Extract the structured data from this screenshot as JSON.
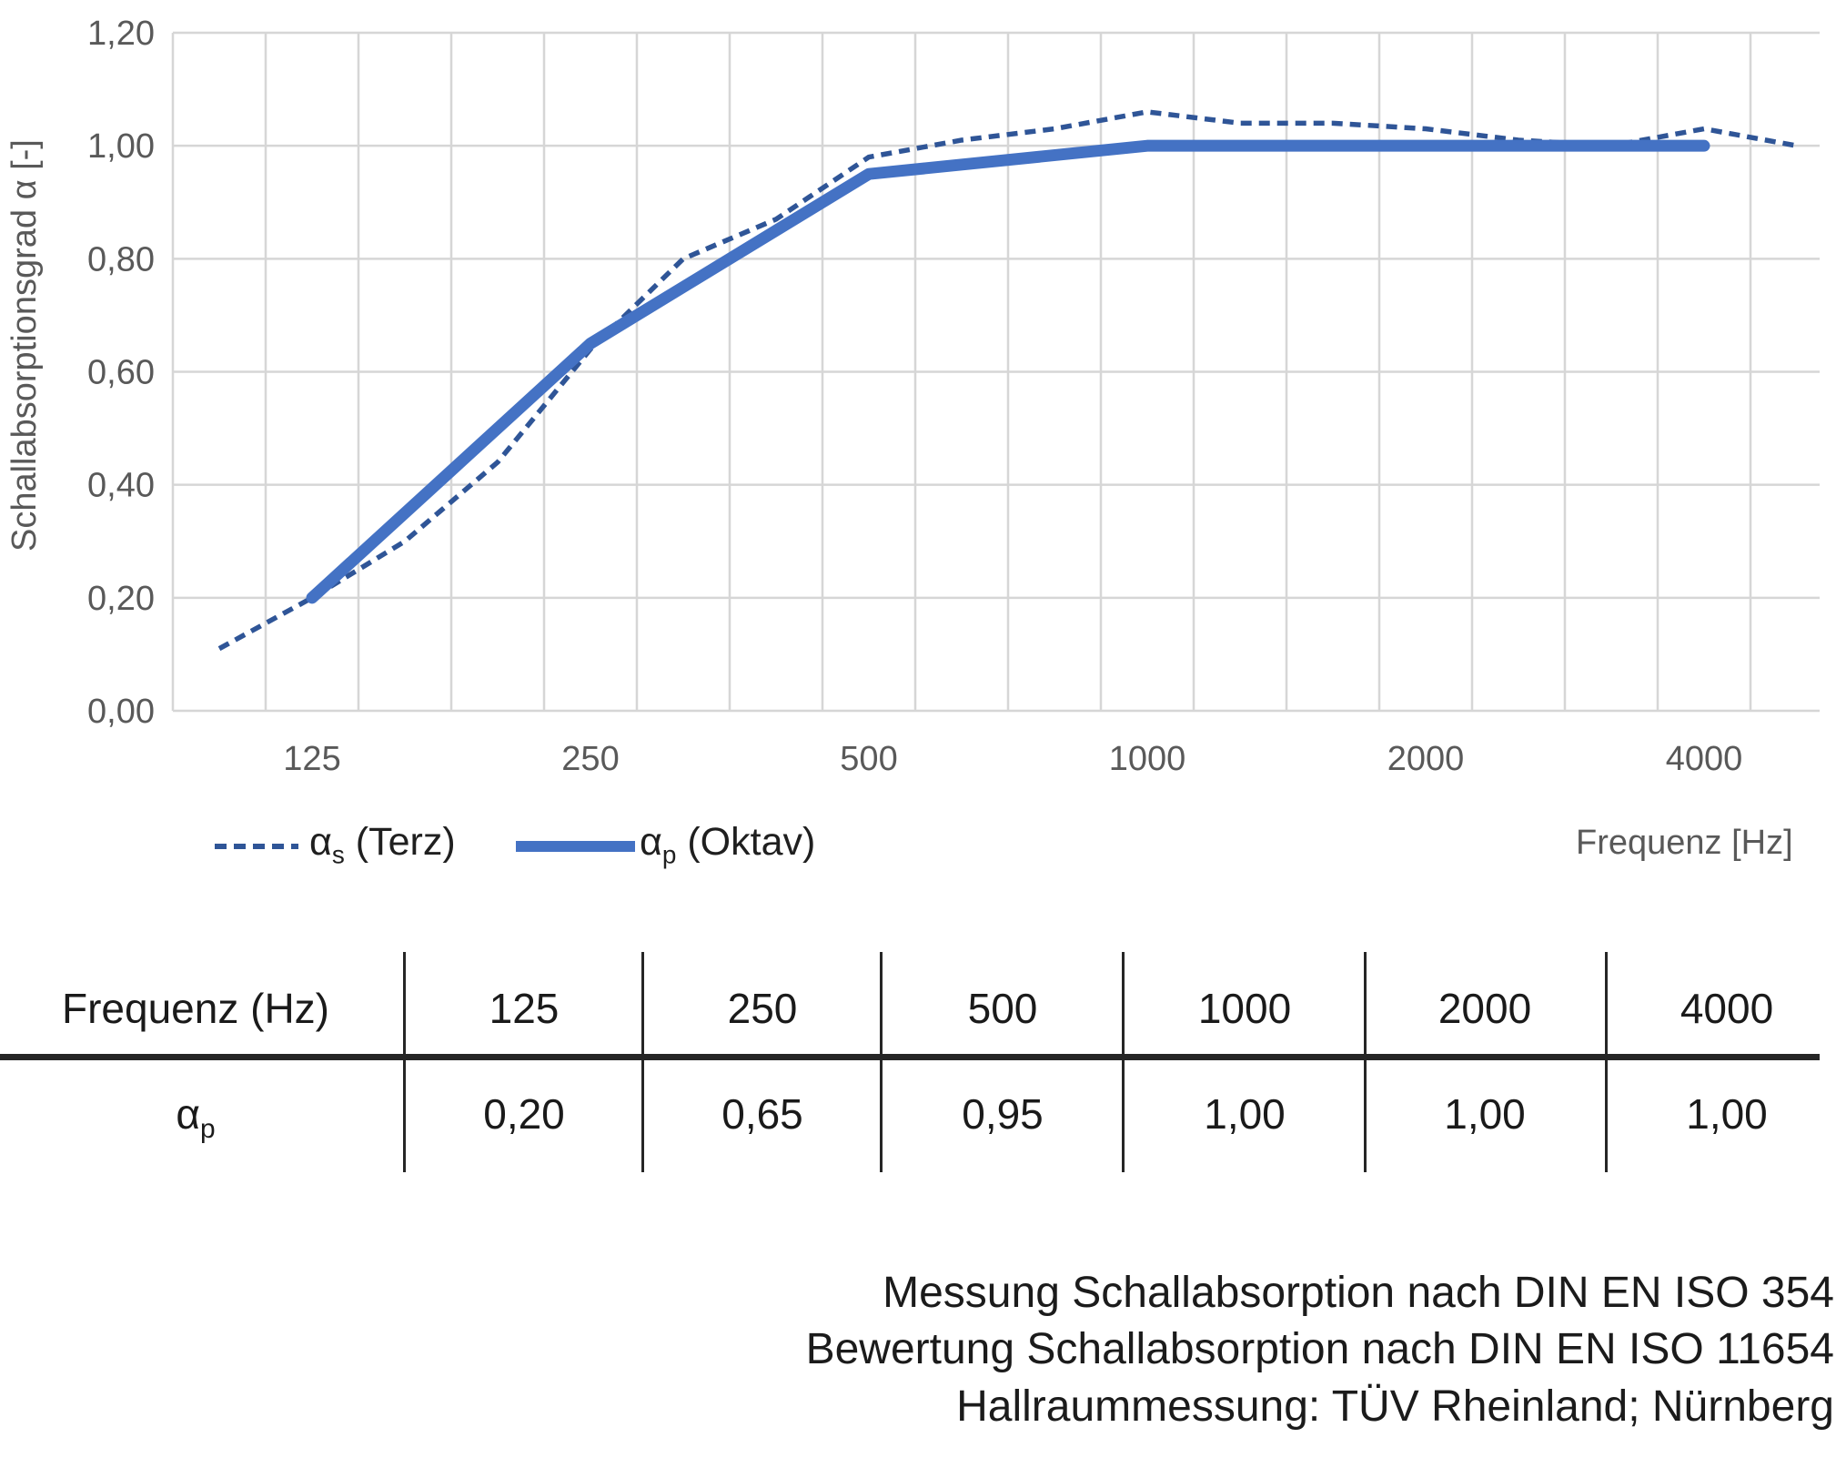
{
  "y_axis": {
    "title": "Schallabsorptionsgrad α [-]",
    "ticks": [
      "1,20",
      "1,00",
      "0,80",
      "0,60",
      "0,40",
      "0,20",
      "0,00"
    ]
  },
  "x_axis": {
    "title": "Frequenz [Hz]",
    "ticks": [
      "125",
      "250",
      "500",
      "1000",
      "2000",
      "4000"
    ]
  },
  "legend": {
    "items": [
      {
        "alpha": "α",
        "sub": "s",
        "rest": " (Terz)"
      },
      {
        "alpha": "α",
        "sub": "p",
        "rest": " (Oktav)"
      }
    ]
  },
  "chart_data": {
    "type": "line",
    "title": "",
    "xlabel": "Frequenz [Hz]",
    "ylabel": "Schallabsorptionsgrad α [-]",
    "ylim": [
      0,
      1.2
    ],
    "ytick_step": 0.2,
    "grid": true,
    "x_scale": "third-octave categorical",
    "x_categories_third_octave": [
      100,
      125,
      160,
      200,
      250,
      315,
      400,
      500,
      630,
      800,
      1000,
      1250,
      1600,
      2000,
      2500,
      3150,
      4000,
      5000
    ],
    "series": [
      {
        "name": "αs (Terz)",
        "style": "dashed",
        "color": "#2F5597",
        "x": [
          100,
          125,
          160,
          200,
          250,
          315,
          400,
          500,
          630,
          800,
          1000,
          1250,
          1600,
          2000,
          2500,
          3150,
          4000,
          5000
        ],
        "values": [
          0.11,
          0.2,
          0.3,
          0.44,
          0.64,
          0.8,
          0.87,
          0.98,
          1.01,
          1.03,
          1.06,
          1.04,
          1.04,
          1.03,
          1.01,
          1.0,
          1.03,
          1.0
        ]
      },
      {
        "name": "αp (Oktav)",
        "style": "solid",
        "color": "#4472C4",
        "x": [
          125,
          250,
          500,
          1000,
          2000,
          4000
        ],
        "values": [
          0.2,
          0.65,
          0.95,
          1.0,
          1.0,
          1.0
        ]
      }
    ],
    "legend_position": "bottom-left"
  },
  "table": {
    "header_label": "Frequenz (Hz)",
    "row_label": {
      "alpha": "α",
      "sub": "p"
    },
    "columns": [
      {
        "freq": "125",
        "value": "0,20"
      },
      {
        "freq": "250",
        "value": "0,65"
      },
      {
        "freq": "500",
        "value": "0,95"
      },
      {
        "freq": "1000",
        "value": "1,00"
      },
      {
        "freq": "2000",
        "value": "1,00"
      },
      {
        "freq": "4000",
        "value": "1,00"
      }
    ]
  },
  "footer": {
    "lines": [
      "Messung Schallabsorption nach DIN EN ISO 354",
      "Bewertung Schallabsorption nach DIN EN ISO 11654",
      "Hallraummessung: TÜV Rheinland; Nürnberg"
    ]
  },
  "colors": {
    "solid_series": "#4472C4",
    "dashed_series": "#2F5597",
    "gridline": "#D6D6D6",
    "axis_text": "#595959",
    "table_line": "#262626",
    "text": "#1b1b1b"
  }
}
